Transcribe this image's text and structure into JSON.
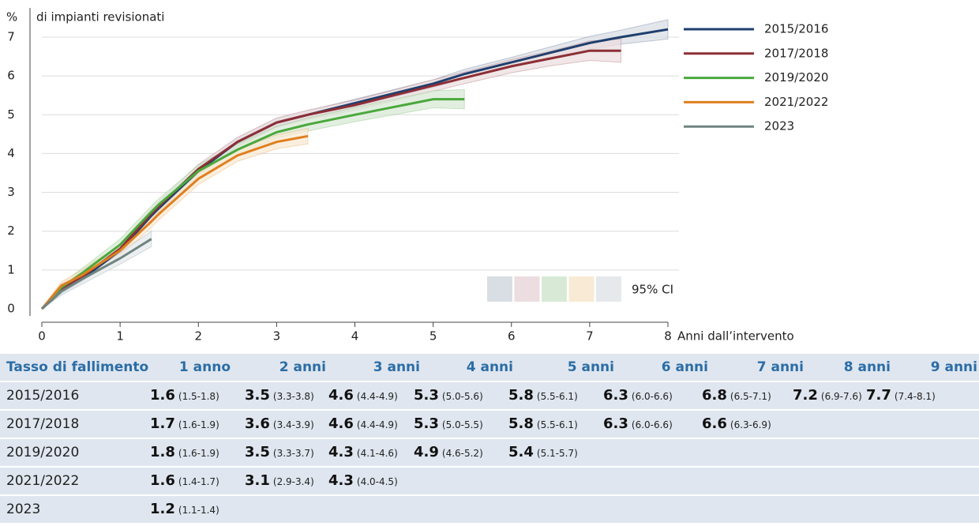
{
  "chart_data": {
    "type": "line",
    "y_unit": "%",
    "ylabel": "di impianti revisionati",
    "xlabel": "Anni dall’intervento",
    "ci_label": "95% CI",
    "x": [
      0,
      0.25,
      0.5,
      1,
      1.4,
      1.5,
      2,
      2.5,
      3,
      3.4,
      4,
      4.5,
      5,
      5.4,
      6,
      6.5,
      7,
      7.4,
      8
    ],
    "series": [
      {
        "name": "2015/2016",
        "color": "#1f3f6e",
        "band_color": "#d9dee4",
        "values": [
          0,
          0.45,
          0.75,
          1.5,
          2.4,
          2.6,
          3.55,
          4.3,
          4.8,
          5.0,
          5.3,
          5.55,
          5.8,
          6.05,
          6.35,
          6.6,
          6.85,
          7.0,
          7.2
        ],
        "lower": [
          0,
          0.38,
          0.68,
          1.4,
          2.3,
          2.5,
          3.45,
          4.2,
          4.7,
          4.9,
          5.2,
          5.45,
          5.7,
          5.93,
          6.22,
          6.45,
          6.68,
          6.82,
          6.95
        ],
        "upper": [
          0,
          0.52,
          0.82,
          1.6,
          2.5,
          2.7,
          3.65,
          4.4,
          4.9,
          5.1,
          5.4,
          5.65,
          5.9,
          6.17,
          6.48,
          6.75,
          7.02,
          7.18,
          7.45
        ]
      },
      {
        "name": "2017/2018",
        "color": "#8c2f35",
        "band_color": "#ecdde0",
        "values": [
          0,
          0.5,
          0.8,
          1.55,
          2.45,
          2.65,
          3.6,
          4.3,
          4.8,
          5.0,
          5.25,
          5.5,
          5.75,
          5.95,
          6.25,
          6.45,
          6.65,
          6.65,
          null
        ],
        "lower": [
          0,
          0.42,
          0.7,
          1.42,
          2.32,
          2.52,
          3.48,
          4.18,
          4.68,
          4.88,
          5.12,
          5.36,
          5.6,
          5.8,
          6.08,
          6.26,
          6.4,
          6.35,
          null
        ],
        "upper": [
          0,
          0.58,
          0.9,
          1.68,
          2.58,
          2.78,
          3.72,
          4.42,
          4.92,
          5.12,
          5.38,
          5.64,
          5.9,
          6.1,
          6.42,
          6.64,
          6.9,
          6.95,
          null
        ]
      },
      {
        "name": "2019/2020",
        "color": "#4aa83c",
        "band_color": "#d8ead6",
        "values": [
          0,
          0.55,
          0.9,
          1.65,
          2.5,
          2.7,
          3.55,
          4.1,
          4.55,
          4.75,
          5.0,
          5.2,
          5.4,
          5.4,
          null,
          null,
          null,
          null,
          null
        ],
        "lower": [
          0,
          0.45,
          0.78,
          1.5,
          2.35,
          2.55,
          3.4,
          3.95,
          4.4,
          4.58,
          4.82,
          5.0,
          5.18,
          5.15,
          null,
          null,
          null,
          null,
          null
        ],
        "upper": [
          0,
          0.65,
          1.02,
          1.8,
          2.65,
          2.85,
          3.7,
          4.25,
          4.7,
          4.92,
          5.18,
          5.4,
          5.62,
          5.65,
          null,
          null,
          null,
          null,
          null
        ]
      },
      {
        "name": "2021/2022",
        "color": "#e07f1f",
        "band_color": "#f8ead4",
        "values": [
          0,
          0.6,
          0.85,
          1.5,
          2.25,
          2.45,
          3.35,
          3.95,
          4.3,
          4.45,
          null,
          null,
          null,
          null,
          null,
          null,
          null,
          null,
          null
        ],
        "lower": [
          0,
          0.5,
          0.72,
          1.35,
          2.1,
          2.3,
          3.2,
          3.8,
          4.12,
          4.25,
          null,
          null,
          null,
          null,
          null,
          null,
          null,
          null,
          null
        ],
        "upper": [
          0,
          0.7,
          0.98,
          1.65,
          2.4,
          2.6,
          3.5,
          4.1,
          4.48,
          4.65,
          null,
          null,
          null,
          null,
          null,
          null,
          null,
          null,
          null
        ]
      },
      {
        "name": "2023",
        "color": "#6f8580",
        "band_color": "#e6e9ec",
        "values": [
          0,
          0.45,
          0.75,
          1.3,
          1.8,
          null,
          null,
          null,
          null,
          null,
          null,
          null,
          null,
          null,
          null,
          null,
          null,
          null,
          null
        ],
        "lower": [
          0,
          0.35,
          0.62,
          1.15,
          1.6,
          null,
          null,
          null,
          null,
          null,
          null,
          null,
          null,
          null,
          null,
          null,
          null,
          null,
          null
        ],
        "upper": [
          0,
          0.55,
          0.88,
          1.45,
          2.0,
          null,
          null,
          null,
          null,
          null,
          null,
          null,
          null,
          null,
          null,
          null,
          null,
          null,
          null
        ]
      }
    ],
    "xlim": [
      0,
      8
    ],
    "xticks": [
      0,
      1,
      2,
      3,
      4,
      5,
      6,
      7,
      8
    ],
    "ylim": [
      0,
      7
    ],
    "yticks": [
      0,
      1,
      2,
      3,
      4,
      5,
      6,
      7
    ],
    "grid": true,
    "legend": "right"
  },
  "table": {
    "header": [
      "Tasso di fallimento",
      "1 anno",
      "2 anni",
      "3 anni",
      "4 anni",
      "5 anni",
      "6 anni",
      "7 anni",
      "8 anni",
      "9 anni"
    ],
    "rows": [
      {
        "label": "2015/2016",
        "cells": [
          [
            "1.6",
            "(1.5-1.8)"
          ],
          [
            "3.5",
            "(3.3-3.8)"
          ],
          [
            "4.6",
            "(4.4-4.9)"
          ],
          [
            "5.3",
            "(5.0-5.6)"
          ],
          [
            "5.8",
            "(5.5-6.1)"
          ],
          [
            "6.3",
            "(6.0-6.6)"
          ],
          [
            "6.8",
            "(6.5-7.1)"
          ],
          [
            "7.2",
            "(6.9-7.6)"
          ],
          [
            "7.7",
            "(7.4-8.1)"
          ]
        ]
      },
      {
        "label": "2017/2018",
        "cells": [
          [
            "1.7",
            "(1.6-1.9)"
          ],
          [
            "3.6",
            "(3.4-3.9)"
          ],
          [
            "4.6",
            "(4.4-4.9)"
          ],
          [
            "5.3",
            "(5.0-5.5)"
          ],
          [
            "5.8",
            "(5.5-6.1)"
          ],
          [
            "6.3",
            "(6.0-6.6)"
          ],
          [
            "6.6",
            "(6.3-6.9)"
          ]
        ]
      },
      {
        "label": "2019/2020",
        "cells": [
          [
            "1.8",
            "(1.6-1.9)"
          ],
          [
            "3.5",
            "(3.3-3.7)"
          ],
          [
            "4.3",
            "(4.1-4.6)"
          ],
          [
            "4.9",
            "(4.6-5.2)"
          ],
          [
            "5.4",
            "(5.1-5.7)"
          ]
        ]
      },
      {
        "label": "2021/2022",
        "cells": [
          [
            "1.6",
            "(1.4-1.7)"
          ],
          [
            "3.1",
            "(2.9-3.4)"
          ],
          [
            "4.3",
            "(4.0-4.5)"
          ]
        ]
      },
      {
        "label": "2023",
        "cells": [
          [
            "1.2",
            "(1.1-1.4)"
          ]
        ]
      }
    ]
  }
}
